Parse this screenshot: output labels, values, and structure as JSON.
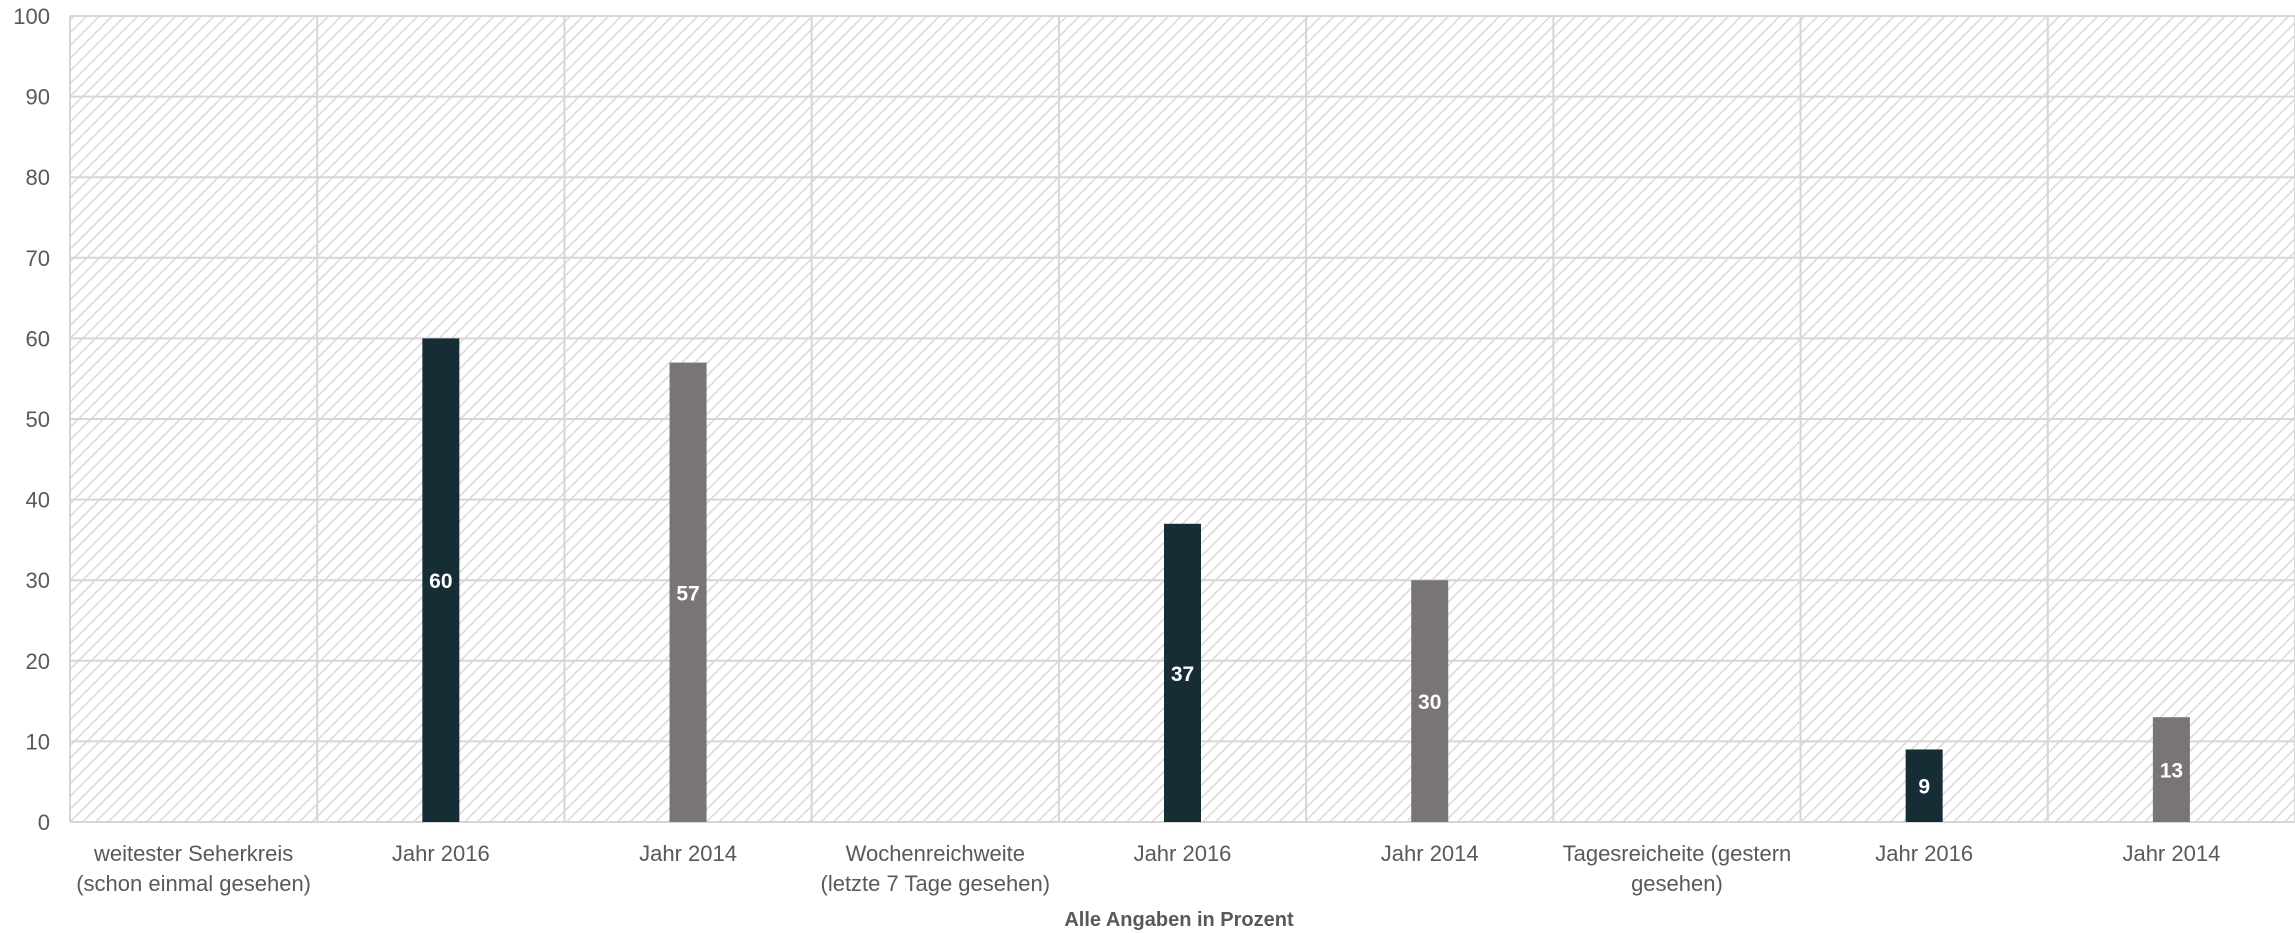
{
  "chart_data": {
    "type": "bar",
    "title": "",
    "xlabel": "Alle Angaben in Prozent",
    "ylabel": "",
    "ylim": [
      0,
      100
    ],
    "yticks": [
      0,
      10,
      20,
      30,
      40,
      50,
      60,
      70,
      80,
      90,
      100
    ],
    "grid": true,
    "categories": [
      "weitester Seherkreis (schon einmal gesehen)",
      "Jahr 2016",
      "Jahr 2014",
      "Wochenreichweite (letzte 7 Tage gesehen)",
      "Jahr 2016",
      "Jahr 2014",
      "Tagesreicheite (gestern gesehen)",
      "Jahr 2016",
      "Jahr 2014"
    ],
    "category_lines": [
      [
        "weitester Seherkreis",
        "(schon einmal gesehen)"
      ],
      [
        "Jahr 2016"
      ],
      [
        "Jahr 2014"
      ],
      [
        "Wochenreichweite",
        "(letzte 7 Tage gesehen)"
      ],
      [
        "Jahr 2016"
      ],
      [
        "Jahr 2014"
      ],
      [
        "Tagesreicheite (gestern",
        "gesehen)"
      ],
      [
        "Jahr 2016"
      ],
      [
        "Jahr 2014"
      ]
    ],
    "values": [
      null,
      60,
      57,
      null,
      37,
      30,
      null,
      9,
      13
    ],
    "bar_colors": [
      null,
      "#172d35",
      "#7a7575",
      null,
      "#172d35",
      "#7a7575",
      null,
      "#172d35",
      "#7a7575"
    ],
    "colors": {
      "background_hatch": "#d9d9d9",
      "gridline": "#d6d6d6",
      "jahr_2016": "#172d35",
      "jahr_2014": "#7a7575"
    }
  }
}
